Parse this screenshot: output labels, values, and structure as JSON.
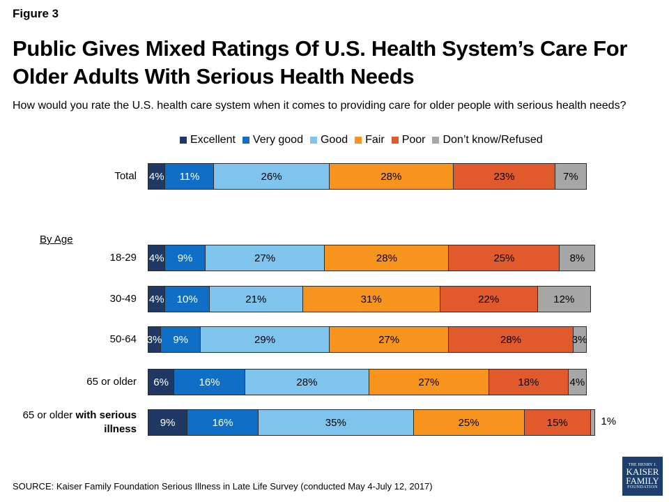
{
  "figure_label": "Figure 3",
  "title": "Public Gives Mixed Ratings Of U.S. Health System’s Care For Older Adults With Serious Health Needs",
  "subtitle": "How would you rate the U.S. health care system when it comes to providing care for older people with serious health needs?",
  "by_age_label": "By Age",
  "source": "SOURCE: Kaiser Family Foundation Serious Illness in Late Life Survey (conducted May 4-July 12, 2017)",
  "logo": {
    "line1": "THE HENRY J.",
    "line2": "KAISER",
    "line3": "FAMILY",
    "line4": "FOUNDATION"
  },
  "chart_data": {
    "type": "bar",
    "orientation": "horizontal",
    "stacked": true,
    "legend_position": "top",
    "categories": [
      "Total",
      "18-29",
      "30-49",
      "50-64",
      "65 or older",
      "65 or older with serious illness"
    ],
    "series": [
      {
        "name": "Excellent",
        "color": "#1f3864",
        "labels": [
          "4%",
          "4%",
          "4%",
          "3%",
          "6%",
          "9%"
        ],
        "values": [
          4,
          4,
          4,
          3,
          6,
          9
        ]
      },
      {
        "name": "Very good",
        "color": "#0f6fc6",
        "labels": [
          "11%",
          "9%",
          "10%",
          "9%",
          "16%",
          "16%"
        ],
        "values": [
          11,
          9,
          10,
          9,
          16,
          16
        ]
      },
      {
        "name": "Good",
        "color": "#7fc4ec",
        "labels": [
          "26%",
          "27%",
          "21%",
          "29%",
          "28%",
          "35%"
        ],
        "values": [
          26,
          27,
          21,
          29,
          28,
          35
        ]
      },
      {
        "name": "Fair",
        "color": "#f7941d",
        "labels": [
          "28%",
          "28%",
          "31%",
          "27%",
          "27%",
          "25%"
        ],
        "values": [
          28,
          28,
          31,
          27,
          27,
          25
        ]
      },
      {
        "name": "Poor",
        "color": "#e05a2b",
        "labels": [
          "23%",
          "25%",
          "22%",
          "28%",
          "18%",
          "15%"
        ],
        "values": [
          23,
          25,
          22,
          28,
          18,
          15
        ]
      },
      {
        "name": "Don’t know/Refused",
        "color": "#a6a6a6",
        "labels": [
          "7%",
          "8%",
          "12%",
          "3%",
          "4%",
          "1%"
        ],
        "values": [
          7,
          8,
          12,
          3,
          4,
          1
        ]
      }
    ],
    "row_labels": [
      {
        "plain": "Total",
        "bold": ""
      },
      {
        "plain": "18-29",
        "bold": ""
      },
      {
        "plain": "30-49",
        "bold": ""
      },
      {
        "plain": "50-64",
        "bold": ""
      },
      {
        "plain": "65 or older",
        "bold": ""
      },
      {
        "plain": "65 or older",
        "bold": "with serious illness"
      }
    ]
  }
}
